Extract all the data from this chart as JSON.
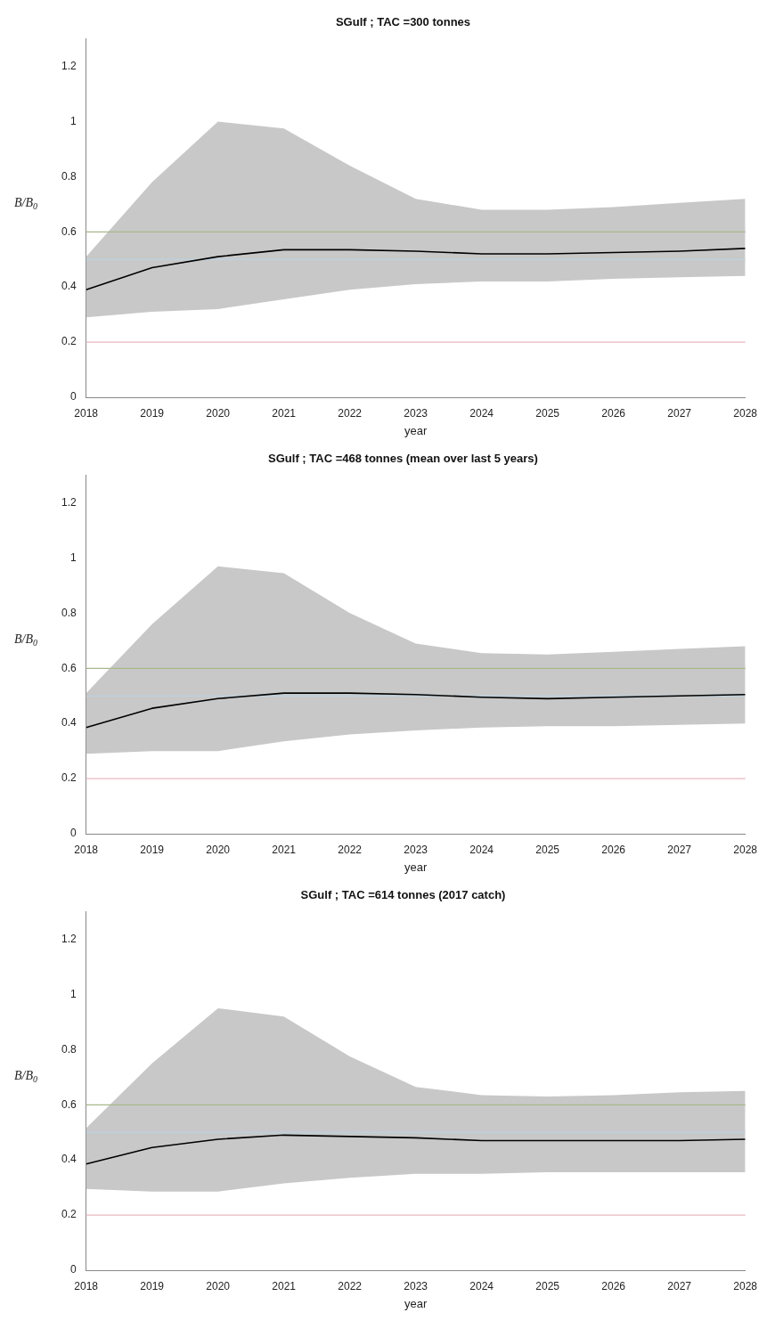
{
  "chart_data": [
    {
      "type": "line",
      "title": "SGulf ; TAC =300 tonnes",
      "xlabel": "year",
      "ylabel": "B/B$_{0}$",
      "x": [
        2018,
        2019,
        2020,
        2021,
        2022,
        2023,
        2024,
        2025,
        2026,
        2027,
        2028
      ],
      "series": [
        {
          "color": "#000000",
          "values": [
            0.39,
            0.47,
            0.51,
            0.535,
            0.535,
            0.53,
            0.52,
            0.52,
            0.525,
            0.53,
            0.54
          ],
          "lower": [
            0.29,
            0.31,
            0.32,
            0.355,
            0.39,
            0.41,
            0.42,
            0.42,
            0.43,
            0.435,
            0.44
          ],
          "upper": [
            0.51,
            0.78,
            1.0,
            0.975,
            0.84,
            0.72,
            0.68,
            0.68,
            0.69,
            0.705,
            0.72
          ]
        }
      ],
      "xlim": [
        2018,
        2028
      ],
      "xticks": [
        2018,
        2019,
        2020,
        2021,
        2022,
        2023,
        2024,
        2025,
        2026,
        2027,
        2028
      ],
      "ylim": [
        0,
        1.3
      ],
      "yticks": [
        0,
        0.2,
        0.4,
        0.6,
        0.8,
        1,
        1.2
      ],
      "ref_lines": [
        {
          "axis": "y",
          "value": 0.2,
          "color": "#e8b8c0"
        },
        {
          "axis": "y",
          "value": 0.5,
          "color": "#b8d4e8"
        },
        {
          "axis": "y",
          "value": 0.6,
          "color": "#a8b88c"
        }
      ]
    },
    {
      "type": "line",
      "title": "SGulf ; TAC =468 tonnes (mean over last 5 years)",
      "xlabel": "year",
      "ylabel": "B/B$_{0}$",
      "x": [
        2018,
        2019,
        2020,
        2021,
        2022,
        2023,
        2024,
        2025,
        2026,
        2027,
        2028
      ],
      "series": [
        {
          "color": "#000000",
          "values": [
            0.385,
            0.455,
            0.49,
            0.51,
            0.51,
            0.505,
            0.495,
            0.49,
            0.495,
            0.5,
            0.505
          ],
          "lower": [
            0.29,
            0.3,
            0.3,
            0.335,
            0.36,
            0.375,
            0.385,
            0.39,
            0.39,
            0.395,
            0.4
          ],
          "upper": [
            0.51,
            0.76,
            0.97,
            0.945,
            0.8,
            0.69,
            0.655,
            0.65,
            0.66,
            0.67,
            0.68
          ]
        }
      ],
      "xlim": [
        2018,
        2028
      ],
      "xticks": [
        2018,
        2019,
        2020,
        2021,
        2022,
        2023,
        2024,
        2025,
        2026,
        2027,
        2028
      ],
      "ylim": [
        0,
        1.3
      ],
      "yticks": [
        0,
        0.2,
        0.4,
        0.6,
        0.8,
        1,
        1.2
      ],
      "ref_lines": [
        {
          "axis": "y",
          "value": 0.2,
          "color": "#e8b8c0"
        },
        {
          "axis": "y",
          "value": 0.5,
          "color": "#b8d4e8"
        },
        {
          "axis": "y",
          "value": 0.6,
          "color": "#a8b88c"
        }
      ]
    },
    {
      "type": "line",
      "title": "SGulf ; TAC =614 tonnes (2017 catch)",
      "xlabel": "year",
      "ylabel": "B/B$_{0}$",
      "x": [
        2018,
        2019,
        2020,
        2021,
        2022,
        2023,
        2024,
        2025,
        2026,
        2027,
        2028
      ],
      "series": [
        {
          "color": "#000000",
          "values": [
            0.385,
            0.445,
            0.475,
            0.49,
            0.485,
            0.48,
            0.47,
            0.47,
            0.47,
            0.47,
            0.475
          ],
          "lower": [
            0.295,
            0.285,
            0.285,
            0.315,
            0.335,
            0.35,
            0.35,
            0.355,
            0.355,
            0.355,
            0.355
          ],
          "upper": [
            0.515,
            0.75,
            0.95,
            0.92,
            0.775,
            0.665,
            0.635,
            0.63,
            0.635,
            0.645,
            0.65
          ]
        }
      ],
      "xlim": [
        2018,
        2028
      ],
      "xticks": [
        2018,
        2019,
        2020,
        2021,
        2022,
        2023,
        2024,
        2025,
        2026,
        2027,
        2028
      ],
      "ylim": [
        0,
        1.3
      ],
      "yticks": [
        0,
        0.2,
        0.4,
        0.6,
        0.8,
        1,
        1.2
      ],
      "ref_lines": [
        {
          "axis": "y",
          "value": 0.2,
          "color": "#e8b8c0"
        },
        {
          "axis": "y",
          "value": 0.5,
          "color": "#b8d4e8"
        },
        {
          "axis": "y",
          "value": 0.6,
          "color": "#a8b88c"
        }
      ]
    }
  ]
}
